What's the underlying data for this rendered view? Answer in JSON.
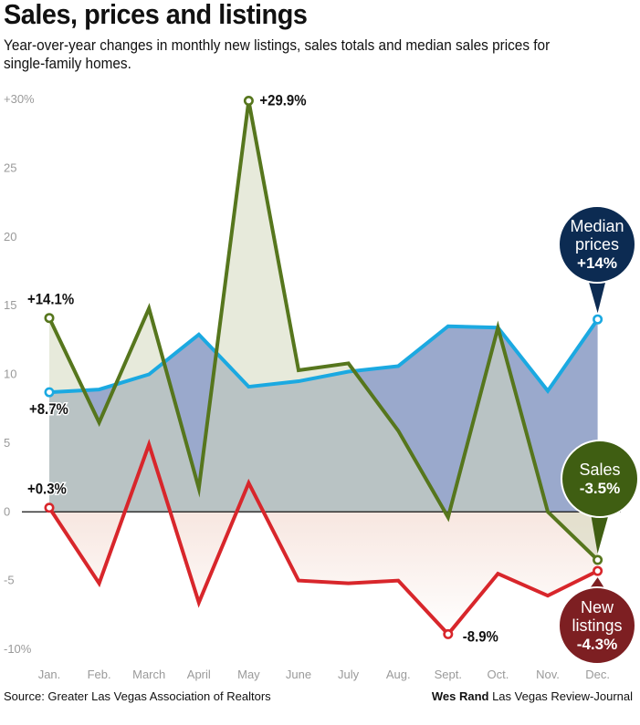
{
  "chart_data": {
    "type": "line",
    "title": "Sales, prices and listings",
    "subtitle": "Year-over-year changes in monthly new listings, sales totals and median sales prices for single-family homes.",
    "categories": [
      "Jan.",
      "Feb.",
      "March",
      "April",
      "May",
      "June",
      "July",
      "Aug.",
      "Sept.",
      "Oct.",
      "Nov.",
      "Dec."
    ],
    "ylim": [
      -10,
      30
    ],
    "yticks": [
      30,
      25,
      20,
      15,
      10,
      5,
      0,
      -5,
      -10
    ],
    "ytick_labels": [
      "+30%",
      "25",
      "20",
      "15",
      "10",
      "5",
      "0",
      "-5",
      "-10%"
    ],
    "series": [
      {
        "name": "Median prices",
        "color": "#1ba9e1",
        "fill": "#9aa9cc",
        "values": [
          8.7,
          8.9,
          10.0,
          12.9,
          9.1,
          9.5,
          10.2,
          10.6,
          13.5,
          13.4,
          8.8,
          14.0
        ]
      },
      {
        "name": "Sales",
        "color": "#56761d",
        "fill": "#d4d9bd",
        "values": [
          14.1,
          6.5,
          14.8,
          1.7,
          29.9,
          10.3,
          10.8,
          5.9,
          -0.4,
          13.4,
          0.0,
          -3.5
        ]
      },
      {
        "name": "New listings",
        "color": "#d8262b",
        "fill": "#f3d9cf",
        "values": [
          0.3,
          -5.2,
          4.9,
          -6.6,
          2.1,
          -5.0,
          -5.2,
          -5.0,
          -8.9,
          -4.5,
          -6.1,
          -4.3
        ]
      }
    ],
    "annotations": [
      {
        "series": 1,
        "index": 0,
        "text": "+14.1%"
      },
      {
        "series": 0,
        "index": 0,
        "text": "+8.7%"
      },
      {
        "series": 2,
        "index": 0,
        "text": "+0.3%"
      },
      {
        "series": 1,
        "index": 4,
        "text": "+29.9%"
      },
      {
        "series": 2,
        "index": 8,
        "text": "-8.9%"
      }
    ],
    "callouts": [
      {
        "series": 0,
        "lines": [
          "Median",
          "prices"
        ],
        "value": "+14%",
        "color": "#0c2b52"
      },
      {
        "series": 1,
        "lines": [
          "Sales"
        ],
        "value": "-3.5%",
        "color": "#3f5e12"
      },
      {
        "series": 2,
        "lines": [
          "New",
          "listings"
        ],
        "value": "-4.3%",
        "color": "#7d1f22"
      }
    ]
  },
  "footer": {
    "source": "Source: Greater Las Vegas Association of Realtors",
    "credit_name": "Wes Rand",
    "credit_org": "Las Vegas Review-Journal"
  }
}
